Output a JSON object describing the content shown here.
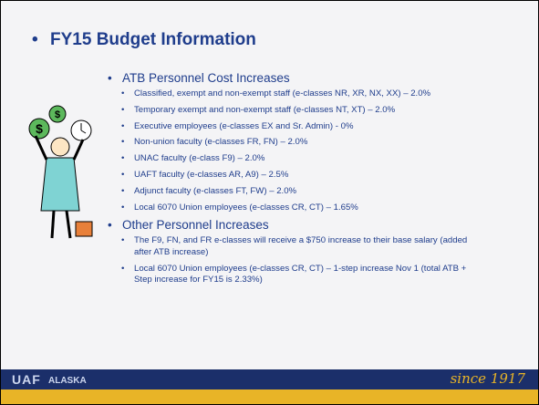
{
  "title": "FY15 Budget Information",
  "sections": [
    {
      "heading": "ATB Personnel Cost Increases",
      "items": [
        "Classified, exempt and non-exempt staff (e-classes NR, XR, NX, XX) – 2.0%",
        "Temporary exempt and non-exempt staff (e-classes NT, XT) – 2.0%",
        "Executive employees (e-classes EX and Sr. Admin) - 0%",
        "Non-union faculty (e-classes FR, FN) – 2.0%",
        "UNAC faculty (e-class F9) – 2.0%",
        "UAFT faculty (e-classes AR, A9) – 2.5%",
        "Adjunct faculty (e-classes FT, FW) – 2.0%",
        "Local 6070 Union employees (e-classes CR, CT) – 1.65%"
      ]
    },
    {
      "heading": "Other Personnel Increases",
      "items": [
        "The F9, FN, and FR e-classes will receive a $750 increase to their base salary (added after ATB increase)",
        "Local 6070 Union employees (e-classes CR, CT) – 1-step increase Nov 1 (total ATB + Step increase for FY15 is 2.33%)"
      ]
    }
  ],
  "footer": {
    "logo": "UAF",
    "logo_sub": "ALASKA",
    "tagline": "since 1917"
  }
}
